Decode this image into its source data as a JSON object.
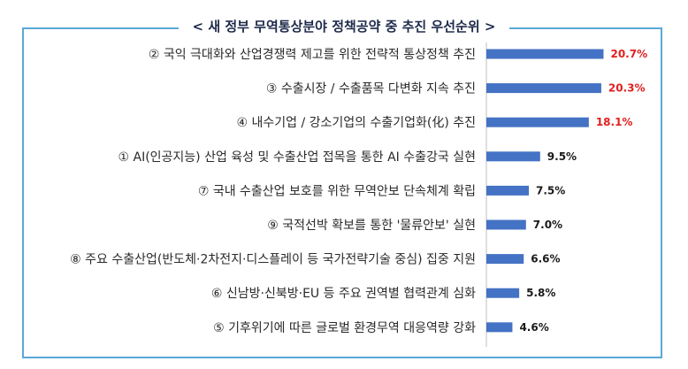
{
  "chart_data": {
    "type": "bar",
    "orientation": "horizontal",
    "title": "< 새 정부 무역통상분야 정책공약 중 추진 우선순위 >",
    "categories": [
      "② 국익 극대화와 산업경쟁력 제고를 위한 전략적 통상정책 추진",
      "③ 수출시장 / 수출품목 다변화 지속 추진",
      "④ 내수기업 / 강소기업의 수출기업화(化) 추진",
      "① AI(인공지능) 산업 육성 및 수출산업 접목을 통한 AI 수출강국 실현",
      "⑦ 국내 수출산업 보호를 위한 무역안보 단속체계 확립",
      "⑨ 국적선박 확보를 통한 '물류안보' 실현",
      "⑧ 주요 수출산업(반도체·2차전지·디스플레이 등 국가전략기술 중심) 집중 지원",
      "⑥ 신남방·신북방·EU 등 주요 권역별 협력관계 심화",
      "⑤ 기후위기에 따른 글로벌 환경무역 대응역량 강화"
    ],
    "values": [
      20.7,
      20.3,
      18.1,
      9.5,
      7.5,
      7.0,
      6.6,
      5.8,
      4.6
    ],
    "value_labels": [
      "20.7%",
      "20.3%",
      "18.1%",
      "9.5%",
      "7.5%",
      "7.0%",
      "6.6%",
      "5.8%",
      "4.6%"
    ],
    "highlight_top": 3,
    "grid": false,
    "legend": "none"
  },
  "colors": {
    "bar": "#4472c4",
    "highlight_label": "#e02020",
    "normal_label": "#1a1a1a",
    "frame": "#5aa9d6",
    "title": "#1e2a4a"
  }
}
